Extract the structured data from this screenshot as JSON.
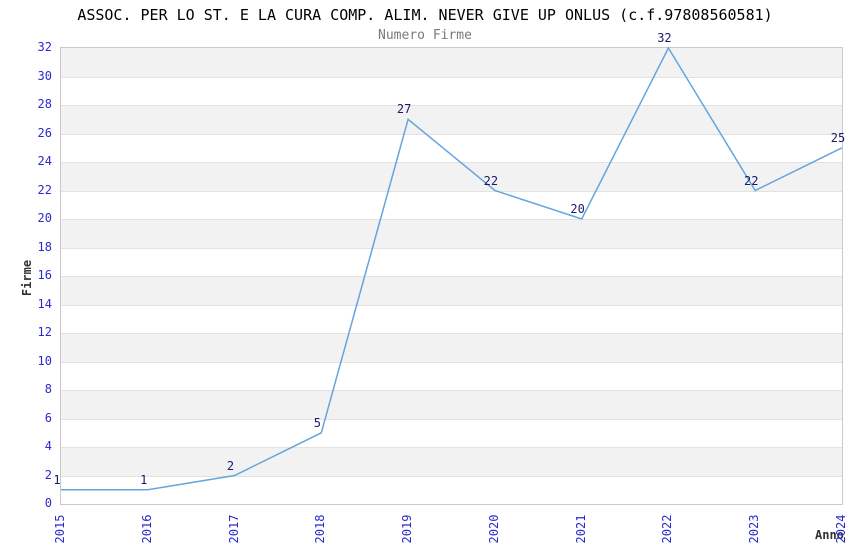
{
  "chart_data": {
    "type": "line",
    "title": "ASSOC. PER LO ST. E LA CURA COMP. ALIM. NEVER GIVE UP ONLUS (c.f.97808560581)",
    "subtitle": "Numero Firme",
    "xlabel": "Anno",
    "ylabel": "Firme",
    "categories": [
      "2015",
      "2016",
      "2017",
      "2018",
      "2019",
      "2020",
      "2021",
      "2022",
      "2023",
      "2024"
    ],
    "values": [
      1,
      1,
      2,
      5,
      27,
      22,
      20,
      32,
      22,
      25
    ],
    "ylim": [
      0,
      32
    ],
    "ytick_step": 2,
    "grid": "horizontal-bands-alternating",
    "legend": "none",
    "colors": {
      "line": "#64a5dc",
      "tick_label": "#2a2ad0",
      "data_label": "#191970",
      "band_gray": "#f2f2f2",
      "gridline": "#e2e2e2",
      "plot_border": "#c9c9c9",
      "title": "#000000",
      "subtitle": "#7a7a7a",
      "axis_title": "#333333",
      "background": "#ffffff"
    }
  }
}
